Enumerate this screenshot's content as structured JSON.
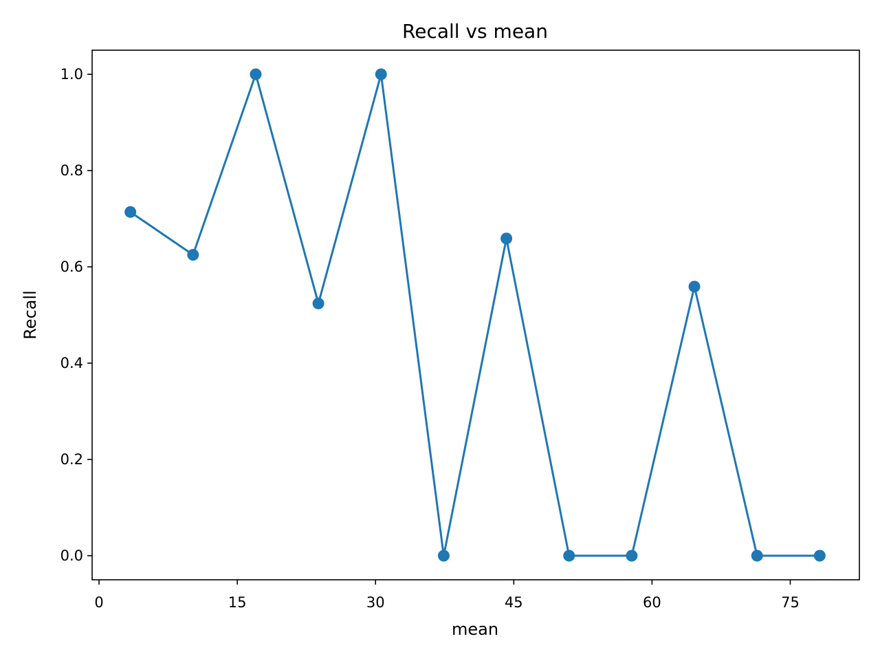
{
  "chart_data": {
    "type": "line",
    "title": "Recall vs mean",
    "xlabel": "mean",
    "ylabel": "Recall",
    "xlim": [
      -0.75,
      82.5
    ],
    "ylim": [
      -0.05,
      1.05
    ],
    "x_ticks": [
      0,
      15,
      30,
      45,
      60,
      75
    ],
    "x_tick_labels": [
      "0",
      "15",
      "30",
      "45",
      "60",
      "75"
    ],
    "y_ticks": [
      0.0,
      0.2,
      0.4,
      0.6,
      0.8,
      1.0
    ],
    "y_tick_labels": [
      "0.0",
      "0.2",
      "0.4",
      "0.6",
      "0.8",
      "1.0"
    ],
    "grid": false,
    "legend": "none",
    "series": [
      {
        "color": "#1f77b4",
        "marker": "circle",
        "x": [
          3.4,
          10.2,
          17.0,
          23.8,
          30.6,
          37.4,
          44.2,
          51.0,
          57.8,
          64.6,
          71.4,
          78.2
        ],
        "y": [
          0.714,
          0.625,
          1.0,
          0.524,
          1.0,
          0.0,
          0.659,
          0.0,
          0.0,
          0.559,
          0.0,
          0.0
        ]
      }
    ]
  }
}
